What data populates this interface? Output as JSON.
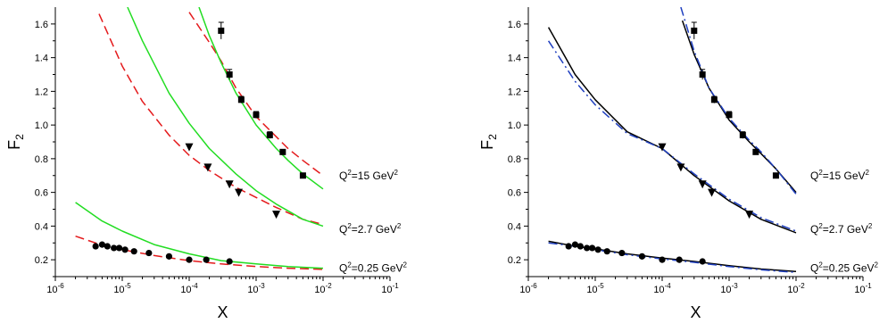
{
  "chart_data": [
    {
      "type": "line",
      "xlabel": "x",
      "ylabel": "F2",
      "xscale": "log",
      "xlim": [
        1e-06,
        0.1
      ],
      "ylim": [
        0.1,
        1.7
      ],
      "xticks": [
        "10",
        "10",
        "10",
        "10",
        "10",
        "10"
      ],
      "xtick_exponents": [
        "-6",
        "-5",
        "-4",
        "-3",
        "-2",
        "-1"
      ],
      "yticks": [
        "0.2",
        "0.4",
        "0.6",
        "0.8",
        "1.0",
        "1.2",
        "1.4",
        "1.6"
      ],
      "annotations": [
        {
          "pre": "Q",
          "sup": "2",
          "mid": "=15 GeV",
          "sup2": "2",
          "y": 0.7
        },
        {
          "pre": "Q",
          "sup": "2",
          "mid": "=2.7 GeV",
          "sup2": "2",
          "y": 0.38
        },
        {
          "pre": "Q",
          "sup": "2",
          "mid": "=0.25 GeV",
          "sup2": "2",
          "y": 0.15
        }
      ],
      "series": [
        {
          "style": "dashed",
          "color": "#e41a1c",
          "group": "Q2=0.25",
          "x": [
            2e-06,
            4e-06,
            1e-05,
            3e-05,
            0.0001,
            0.0003,
            0.001,
            0.003,
            0.01
          ],
          "y": [
            0.34,
            0.3,
            0.26,
            0.225,
            0.195,
            0.175,
            0.16,
            0.15,
            0.143
          ]
        },
        {
          "style": "dashed",
          "color": "#e41a1c",
          "group": "Q2=2.7",
          "x": [
            4.5e-06,
            1e-05,
            2e-05,
            5e-05,
            0.0001,
            0.0002,
            0.0005,
            0.001,
            0.002,
            0.005,
            0.01
          ],
          "y": [
            1.66,
            1.35,
            1.14,
            0.94,
            0.82,
            0.73,
            0.63,
            0.57,
            0.51,
            0.44,
            0.41
          ]
        },
        {
          "style": "dashed",
          "color": "#e41a1c",
          "group": "Q2=15",
          "x": [
            0.0001,
            0.0002,
            0.0003,
            0.0005,
            0.001,
            0.002,
            0.003,
            0.005,
            0.01
          ],
          "y": [
            1.67,
            1.49,
            1.38,
            1.22,
            1.05,
            0.93,
            0.86,
            0.79,
            0.7
          ]
        },
        {
          "style": "solid",
          "color": "#22dd22",
          "group": "Q2=0.25",
          "x": [
            2e-06,
            5e-06,
            1e-05,
            3e-05,
            0.0001,
            0.0003,
            0.001,
            0.003,
            0.01
          ],
          "y": [
            0.54,
            0.43,
            0.37,
            0.29,
            0.235,
            0.195,
            0.175,
            0.16,
            0.15
          ]
        },
        {
          "style": "solid",
          "color": "#22dd22",
          "group": "Q2=2.7",
          "x": [
            1.2e-05,
            2e-05,
            5e-05,
            0.0001,
            0.0002,
            0.0005,
            0.001,
            0.002,
            0.005,
            0.01
          ],
          "y": [
            1.7,
            1.5,
            1.19,
            1.01,
            0.86,
            0.71,
            0.61,
            0.53,
            0.44,
            0.4
          ]
        },
        {
          "style": "solid",
          "color": "#22dd22",
          "group": "Q2=15",
          "x": [
            0.00014,
            0.0002,
            0.0003,
            0.0005,
            0.001,
            0.002,
            0.003,
            0.005,
            0.01
          ],
          "y": [
            1.7,
            1.53,
            1.37,
            1.19,
            1.0,
            0.86,
            0.79,
            0.71,
            0.62
          ]
        },
        {
          "style": "markers",
          "marker": "circle",
          "color": "#000000",
          "group": "Q2=0.25",
          "x": [
            4e-06,
            5e-06,
            6e-06,
            7.5e-06,
            9e-06,
            1.1e-05,
            1.5e-05,
            2.5e-05,
            5e-05,
            0.0001,
            0.00018,
            0.0004
          ],
          "y": [
            0.28,
            0.29,
            0.28,
            0.27,
            0.27,
            0.26,
            0.25,
            0.24,
            0.22,
            0.2,
            0.2,
            0.19
          ]
        },
        {
          "style": "markers",
          "marker": "triangle-down",
          "color": "#000000",
          "group": "Q2=2.7",
          "x": [
            0.0001,
            0.00019,
            0.0004,
            0.00055,
            0.002
          ],
          "y": [
            0.87,
            0.75,
            0.65,
            0.6,
            0.47
          ]
        },
        {
          "style": "markers",
          "marker": "square",
          "color": "#000000",
          "group": "Q2=15",
          "x": [
            0.0003,
            0.0004,
            0.0006,
            0.001,
            0.0016,
            0.0025,
            0.005
          ],
          "y": [
            1.56,
            1.3,
            1.15,
            1.06,
            0.94,
            0.84,
            0.7
          ],
          "yerr": [
            0.05,
            0.03,
            0.02,
            0.02,
            0.02,
            0.01,
            0.01
          ]
        }
      ]
    },
    {
      "type": "line",
      "xlabel": "x",
      "ylabel": "F2",
      "xscale": "log",
      "xlim": [
        1e-06,
        0.1
      ],
      "ylim": [
        0.1,
        1.7
      ],
      "xticks": [
        "10",
        "10",
        "10",
        "10",
        "10",
        "10"
      ],
      "xtick_exponents": [
        "-6",
        "-5",
        "-4",
        "-3",
        "-2",
        "-1"
      ],
      "yticks": [
        "0.2",
        "0.4",
        "0.6",
        "0.8",
        "1.0",
        "1.2",
        "1.4",
        "1.6"
      ],
      "annotations": [
        {
          "pre": "Q",
          "sup": "2",
          "mid": "=15 GeV",
          "sup2": "2",
          "y": 0.7
        },
        {
          "pre": "Q",
          "sup": "2",
          "mid": "=2.7 GeV",
          "sup2": "2",
          "y": 0.38
        },
        {
          "pre": "Q",
          "sup": "2",
          "mid": "=0.25 GeV",
          "sup2": "2",
          "y": 0.15
        }
      ],
      "series": [
        {
          "style": "solid",
          "color": "#000000",
          "group": "Q2=0.25",
          "x": [
            2e-06,
            5e-06,
            1e-05,
            3e-05,
            0.0001,
            0.0003,
            0.001,
            0.003,
            0.01
          ],
          "y": [
            0.31,
            0.28,
            0.265,
            0.235,
            0.21,
            0.19,
            0.165,
            0.145,
            0.13
          ]
        },
        {
          "style": "dashdot",
          "color": "#1f3fbf",
          "group": "Q2=0.25",
          "x": [
            2e-06,
            5e-06,
            1e-05,
            3e-05,
            0.0001,
            0.0003,
            0.001,
            0.003,
            0.01
          ],
          "y": [
            0.3,
            0.28,
            0.26,
            0.23,
            0.205,
            0.185,
            0.16,
            0.14,
            0.125
          ]
        },
        {
          "style": "solid",
          "color": "#000000",
          "group": "Q2=2.7",
          "x": [
            2e-06,
            5e-06,
            1e-05,
            3e-05,
            0.0001,
            0.0003,
            0.001,
            0.003,
            0.01
          ],
          "y": [
            1.58,
            1.3,
            1.15,
            0.96,
            0.86,
            0.7,
            0.55,
            0.44,
            0.36
          ]
        },
        {
          "style": "dashdot",
          "color": "#1f3fbf",
          "group": "Q2=2.7",
          "x": [
            2e-06,
            5e-06,
            1e-05,
            3e-05,
            0.0001,
            0.0003,
            0.001,
            0.003,
            0.01
          ],
          "y": [
            1.5,
            1.26,
            1.12,
            0.95,
            0.86,
            0.71,
            0.56,
            0.45,
            0.37
          ]
        },
        {
          "style": "solid",
          "color": "#000000",
          "group": "Q2=15",
          "x": [
            0.0002,
            0.0003,
            0.0005,
            0.001,
            0.002,
            0.003,
            0.005,
            0.01
          ],
          "y": [
            1.62,
            1.42,
            1.22,
            1.03,
            0.9,
            0.83,
            0.74,
            0.6
          ]
        },
        {
          "style": "dashdot",
          "color": "#1f3fbf",
          "group": "Q2=15",
          "x": [
            0.00019,
            0.0003,
            0.0005,
            0.001,
            0.002,
            0.003,
            0.005,
            0.01
          ],
          "y": [
            1.7,
            1.44,
            1.22,
            1.04,
            0.91,
            0.84,
            0.74,
            0.59
          ]
        },
        {
          "style": "markers",
          "marker": "circle",
          "color": "#000000",
          "group": "Q2=0.25",
          "x": [
            4e-06,
            5e-06,
            6e-06,
            7.5e-06,
            9e-06,
            1.1e-05,
            1.5e-05,
            2.5e-05,
            5e-05,
            0.0001,
            0.00018,
            0.0004
          ],
          "y": [
            0.28,
            0.29,
            0.28,
            0.27,
            0.27,
            0.26,
            0.25,
            0.24,
            0.22,
            0.2,
            0.2,
            0.19
          ]
        },
        {
          "style": "markers",
          "marker": "triangle-down",
          "color": "#000000",
          "group": "Q2=2.7",
          "x": [
            0.0001,
            0.00019,
            0.0004,
            0.00055,
            0.002
          ],
          "y": [
            0.87,
            0.75,
            0.65,
            0.6,
            0.47
          ]
        },
        {
          "style": "markers",
          "marker": "square",
          "color": "#000000",
          "group": "Q2=15",
          "x": [
            0.0003,
            0.0004,
            0.0006,
            0.001,
            0.0016,
            0.0025,
            0.005
          ],
          "y": [
            1.56,
            1.3,
            1.15,
            1.06,
            0.94,
            0.84,
            0.7
          ],
          "yerr": [
            0.05,
            0.03,
            0.02,
            0.02,
            0.02,
            0.01,
            0.01
          ]
        }
      ]
    }
  ]
}
